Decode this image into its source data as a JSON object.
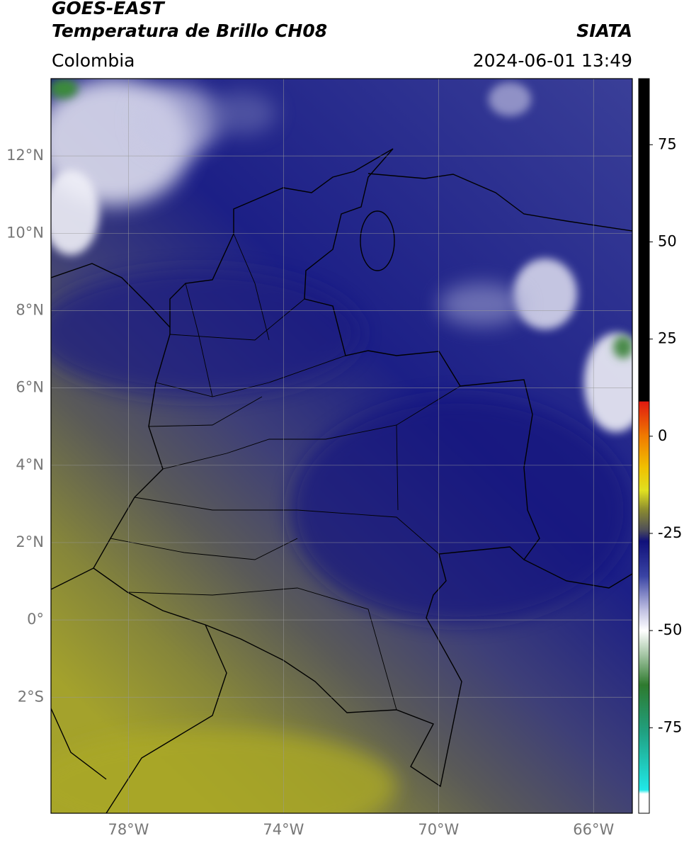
{
  "header": {
    "title": "GOES-EAST",
    "subtitle": "Temperatura de Brillo CH08",
    "source": "SIATA",
    "region": "Colombia",
    "datetime": "2024-06-01 13:49"
  },
  "map": {
    "lonlim": [
      -80,
      -65
    ],
    "latlim": [
      -5,
      14
    ],
    "grid": true,
    "lon_ticks": [
      {
        "value": -78,
        "label": "78°W"
      },
      {
        "value": -74,
        "label": "74°W"
      },
      {
        "value": -70,
        "label": "70°W"
      },
      {
        "value": -66,
        "label": "66°W"
      }
    ],
    "lat_ticks": [
      {
        "value": 12,
        "label": "12°N"
      },
      {
        "value": 10,
        "label": "10°N"
      },
      {
        "value": 8,
        "label": "8°N"
      },
      {
        "value": 6,
        "label": "6°N"
      },
      {
        "value": 4,
        "label": "4°N"
      },
      {
        "value": 2,
        "label": "2°N"
      },
      {
        "value": 0,
        "label": "0°"
      },
      {
        "value": -2,
        "label": "2°S"
      }
    ]
  },
  "colorbar": {
    "lim": [
      -97,
      92
    ],
    "ticks": [
      75,
      50,
      25,
      0,
      -25,
      -50,
      -75
    ],
    "colormap": [
      {
        "value": 92,
        "color": "#000000"
      },
      {
        "value": 9,
        "color": "#000000"
      },
      {
        "value": 8.9,
        "color": "#e01a10"
      },
      {
        "value": 0,
        "color": "#f07a00"
      },
      {
        "value": -8,
        "color": "#f0c000"
      },
      {
        "value": -14,
        "color": "#e0e020"
      },
      {
        "value": -19,
        "color": "#8a8a30"
      },
      {
        "value": -24,
        "color": "#505058"
      },
      {
        "value": -27,
        "color": "#10107a"
      },
      {
        "value": -36,
        "color": "#3a44a4"
      },
      {
        "value": -45,
        "color": "#c4c4e4"
      },
      {
        "value": -50,
        "color": "#ffffff"
      },
      {
        "value": -56,
        "color": "#a8c8a8"
      },
      {
        "value": -64,
        "color": "#2e7a2e"
      },
      {
        "value": -76,
        "color": "#20a080"
      },
      {
        "value": -91,
        "color": "#20e8e8"
      },
      {
        "value": -92,
        "color": "#ffffff"
      },
      {
        "value": -97,
        "color": "#ffffff"
      }
    ]
  }
}
